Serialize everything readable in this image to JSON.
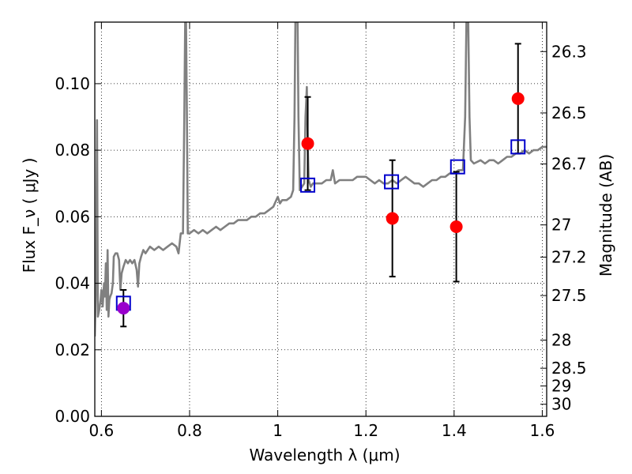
{
  "chart_data": {
    "type": "scatter",
    "title": "",
    "xlabel": "Wavelength  λ (μm)",
    "ylabel": "Flux  F_ν  ( μJy )",
    "ylabel_right": "Magnitude (AB)",
    "xlim": [
      0.585,
      1.61
    ],
    "ylim": [
      0.0,
      0.1185
    ],
    "grid": true,
    "x_ticks": [
      0.6,
      0.8,
      1.0,
      1.2,
      1.4,
      1.6
    ],
    "x_tick_labels": [
      "0.6",
      "0.8",
      "1",
      "1.2",
      "1.4",
      "1.6"
    ],
    "y_ticks": [
      0.0,
      0.02,
      0.04,
      0.06,
      0.08,
      0.1
    ],
    "y_tick_labels": [
      "0.00",
      "0.02",
      "0.04",
      "0.06",
      "0.08",
      "0.10"
    ],
    "right_axis": {
      "label": "Magnitude (AB)",
      "tick_labels": [
        "26.3",
        "26.5",
        "26.7",
        "27",
        "27.2",
        "27.5",
        "28",
        "28.5",
        "29",
        "30"
      ]
    },
    "series": [
      {
        "kind": "model-spectrum",
        "color": "#808080",
        "points": [
          [
            0.585,
            0.024
          ],
          [
            0.588,
            0.042
          ],
          [
            0.59,
            0.089
          ],
          [
            0.592,
            0.03
          ],
          [
            0.595,
            0.032
          ],
          [
            0.598,
            0.035
          ],
          [
            0.6,
            0.038
          ],
          [
            0.603,
            0.033
          ],
          [
            0.606,
            0.04
          ],
          [
            0.608,
            0.036
          ],
          [
            0.61,
            0.046
          ],
          [
            0.612,
            0.032
          ],
          [
            0.614,
            0.05
          ],
          [
            0.616,
            0.03
          ],
          [
            0.618,
            0.035
          ],
          [
            0.62,
            0.036
          ],
          [
            0.623,
            0.037
          ],
          [
            0.626,
            0.04
          ],
          [
            0.628,
            0.048
          ],
          [
            0.632,
            0.049
          ],
          [
            0.636,
            0.049
          ],
          [
            0.64,
            0.047
          ],
          [
            0.643,
            0.038
          ],
          [
            0.646,
            0.043
          ],
          [
            0.65,
            0.045
          ],
          [
            0.655,
            0.047
          ],
          [
            0.66,
            0.046
          ],
          [
            0.665,
            0.047
          ],
          [
            0.67,
            0.046
          ],
          [
            0.675,
            0.047
          ],
          [
            0.68,
            0.044
          ],
          [
            0.683,
            0.039
          ],
          [
            0.686,
            0.046
          ],
          [
            0.69,
            0.048
          ],
          [
            0.695,
            0.05
          ],
          [
            0.7,
            0.049
          ],
          [
            0.71,
            0.051
          ],
          [
            0.72,
            0.05
          ],
          [
            0.73,
            0.051
          ],
          [
            0.74,
            0.05
          ],
          [
            0.75,
            0.051
          ],
          [
            0.76,
            0.052
          ],
          [
            0.77,
            0.051
          ],
          [
            0.775,
            0.049
          ],
          [
            0.78,
            0.055
          ],
          [
            0.785,
            0.055
          ],
          [
            0.788,
            0.09
          ],
          [
            0.79,
            0.1185
          ],
          [
            0.792,
            0.1185
          ],
          [
            0.794,
            0.09
          ],
          [
            0.796,
            0.055
          ],
          [
            0.8,
            0.055
          ],
          [
            0.81,
            0.056
          ],
          [
            0.82,
            0.055
          ],
          [
            0.83,
            0.056
          ],
          [
            0.84,
            0.055
          ],
          [
            0.85,
            0.056
          ],
          [
            0.86,
            0.057
          ],
          [
            0.87,
            0.056
          ],
          [
            0.88,
            0.057
          ],
          [
            0.89,
            0.058
          ],
          [
            0.9,
            0.058
          ],
          [
            0.91,
            0.059
          ],
          [
            0.92,
            0.059
          ],
          [
            0.93,
            0.059
          ],
          [
            0.94,
            0.06
          ],
          [
            0.95,
            0.06
          ],
          [
            0.96,
            0.061
          ],
          [
            0.97,
            0.061
          ],
          [
            0.98,
            0.062
          ],
          [
            0.99,
            0.063
          ],
          [
            1.0,
            0.066
          ],
          [
            1.005,
            0.064
          ],
          [
            1.01,
            0.065
          ],
          [
            1.02,
            0.065
          ],
          [
            1.03,
            0.066
          ],
          [
            1.035,
            0.068
          ],
          [
            1.038,
            0.09
          ],
          [
            1.04,
            0.1185
          ],
          [
            1.045,
            0.1185
          ],
          [
            1.047,
            0.09
          ],
          [
            1.05,
            0.068
          ],
          [
            1.055,
            0.069
          ],
          [
            1.06,
            0.07
          ],
          [
            1.063,
            0.09
          ],
          [
            1.066,
            0.099
          ],
          [
            1.068,
            0.082
          ],
          [
            1.07,
            0.071
          ],
          [
            1.075,
            0.069
          ],
          [
            1.08,
            0.07
          ],
          [
            1.09,
            0.07
          ],
          [
            1.1,
            0.07
          ],
          [
            1.11,
            0.071
          ],
          [
            1.12,
            0.071
          ],
          [
            1.125,
            0.074
          ],
          [
            1.13,
            0.07
          ],
          [
            1.14,
            0.071
          ],
          [
            1.15,
            0.071
          ],
          [
            1.16,
            0.071
          ],
          [
            1.17,
            0.071
          ],
          [
            1.18,
            0.072
          ],
          [
            1.19,
            0.072
          ],
          [
            1.2,
            0.072
          ],
          [
            1.21,
            0.071
          ],
          [
            1.22,
            0.07
          ],
          [
            1.23,
            0.071
          ],
          [
            1.24,
            0.07
          ],
          [
            1.25,
            0.07
          ],
          [
            1.26,
            0.071
          ],
          [
            1.27,
            0.07
          ],
          [
            1.28,
            0.071
          ],
          [
            1.29,
            0.072
          ],
          [
            1.3,
            0.071
          ],
          [
            1.31,
            0.07
          ],
          [
            1.32,
            0.07
          ],
          [
            1.33,
            0.069
          ],
          [
            1.34,
            0.07
          ],
          [
            1.35,
            0.071
          ],
          [
            1.36,
            0.071
          ],
          [
            1.37,
            0.072
          ],
          [
            1.38,
            0.072
          ],
          [
            1.39,
            0.073
          ],
          [
            1.4,
            0.073
          ],
          [
            1.41,
            0.074
          ],
          [
            1.42,
            0.074
          ],
          [
            1.425,
            0.09
          ],
          [
            1.428,
            0.1185
          ],
          [
            1.432,
            0.1185
          ],
          [
            1.435,
            0.09
          ],
          [
            1.438,
            0.077
          ],
          [
            1.445,
            0.076
          ],
          [
            1.46,
            0.077
          ],
          [
            1.47,
            0.076
          ],
          [
            1.48,
            0.077
          ],
          [
            1.49,
            0.077
          ],
          [
            1.5,
            0.076
          ],
          [
            1.51,
            0.077
          ],
          [
            1.52,
            0.078
          ],
          [
            1.53,
            0.078
          ],
          [
            1.54,
            0.079
          ],
          [
            1.55,
            0.079
          ],
          [
            1.56,
            0.08
          ],
          [
            1.57,
            0.079
          ],
          [
            1.58,
            0.08
          ],
          [
            1.59,
            0.08
          ],
          [
            1.6,
            0.081
          ],
          [
            1.61,
            0.081
          ]
        ]
      },
      {
        "kind": "observed-points",
        "marker": "circle",
        "color": "#ff0000",
        "points": [
          {
            "x": 0.65,
            "y": 0.0325,
            "err": 0.0055,
            "color": "#9900cc"
          },
          {
            "x": 1.068,
            "y": 0.082,
            "err": 0.014
          },
          {
            "x": 1.26,
            "y": 0.0595,
            "err": 0.0175
          },
          {
            "x": 1.405,
            "y": 0.057,
            "err": 0.0165
          },
          {
            "x": 1.545,
            "y": 0.0955,
            "err": 0.0165
          }
        ]
      },
      {
        "kind": "model-photometry",
        "marker": "open-square",
        "color": "#0000cc",
        "points": [
          {
            "x": 0.65,
            "y": 0.034
          },
          {
            "x": 1.068,
            "y": 0.0695
          },
          {
            "x": 1.258,
            "y": 0.0705
          },
          {
            "x": 1.408,
            "y": 0.075
          },
          {
            "x": 1.545,
            "y": 0.081
          }
        ]
      }
    ]
  }
}
